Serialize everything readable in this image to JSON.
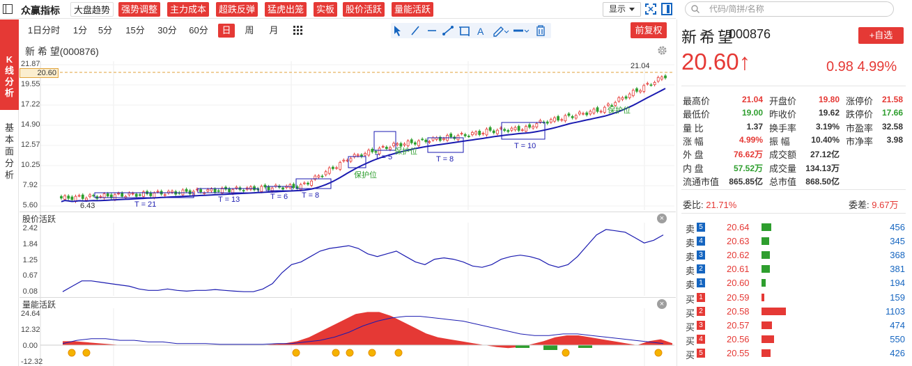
{
  "toolbar": {
    "app_title": "众赢指标",
    "indicators": [
      "大盘趋势",
      "强势调整",
      "主力成本",
      "超跌反弹",
      "猛虎出笼",
      "实板",
      "股价活跃",
      "量能活跃"
    ],
    "display_label": "显示"
  },
  "search": {
    "placeholder": "代码/简拼/名称"
  },
  "left_tabs": {
    "kline": "K线分析",
    "basic": "基本面分析"
  },
  "periods": [
    "1日分时",
    "1分",
    "5分",
    "15分",
    "30分",
    "60分",
    "日",
    "周",
    "月"
  ],
  "active_period": "日",
  "restore_label": "前复权",
  "chart": {
    "title": "新 希 望(000876)",
    "current_price_tag": "20.60",
    "high_marker": "21.04",
    "low_marker": "6.43",
    "pane2_label": "股价活跃",
    "pane3_label": "量能活跃",
    "pane1_yticks": [
      "21.87",
      "19.55",
      "17.22",
      "14.90",
      "12.57",
      "10.25",
      "7.92",
      "5.60"
    ],
    "pane2_yticks": [
      "2.42",
      "1.84",
      "1.25",
      "0.67",
      "0.08"
    ],
    "pane3_yticks": [
      "24.64",
      "12.32",
      "0.00",
      "-12.32"
    ],
    "box_labels": [
      "T = 21",
      "T = 13",
      "T = 6",
      "T = 8",
      "T = 5",
      "T = 8",
      "T = 10"
    ],
    "protect_labels": [
      "保护位",
      "保护位",
      "保护位"
    ]
  },
  "quote": {
    "name": "新希望",
    "code": "000876",
    "watch_label": "+自选",
    "price": "20.60↑",
    "change": "0.98 4.99%",
    "fields": [
      {
        "label": "最高价",
        "value": "21.04",
        "color": "red"
      },
      {
        "label": "开盘价",
        "value": "19.80",
        "color": "red"
      },
      {
        "label": "涨停价",
        "value": "21.58",
        "color": "red"
      },
      {
        "label": "最低价",
        "value": "19.00",
        "color": "green"
      },
      {
        "label": "昨收价",
        "value": "19.62",
        "color": "normal"
      },
      {
        "label": "跌停价",
        "value": "17.66",
        "color": "green"
      },
      {
        "label": "量  比",
        "value": "1.37",
        "color": "normal"
      },
      {
        "label": "换手率",
        "value": "3.19%",
        "color": "normal"
      },
      {
        "label": "市盈率",
        "value": "32.58",
        "color": "normal"
      },
      {
        "label": "涨  幅",
        "value": "4.99%",
        "color": "red"
      },
      {
        "label": "振  幅",
        "value": "10.40%",
        "color": "normal"
      },
      {
        "label": "市净率",
        "value": "3.98",
        "color": "normal"
      },
      {
        "label": "外  盘",
        "value": "76.62万",
        "color": "red"
      },
      {
        "label": "成交额",
        "value": "27.12亿",
        "color": "normal"
      },
      {
        "label": "",
        "value": "",
        "color": "normal"
      },
      {
        "label": "内  盘",
        "value": "57.52万",
        "color": "green"
      },
      {
        "label": "成交量",
        "value": "134.13万",
        "color": "normal"
      },
      {
        "label": "",
        "value": "",
        "color": "normal"
      },
      {
        "label": "流通市值",
        "value": "865.85亿",
        "color": "normal"
      },
      {
        "label": "总市值",
        "value": "868.50亿",
        "color": "normal"
      },
      {
        "label": "",
        "value": "",
        "color": "normal"
      }
    ],
    "weibi_label": "委比:",
    "weibi_value": "21.71%",
    "weicha_label": "委差:",
    "weicha_value": "9.67万"
  },
  "orderbook": [
    {
      "side": "卖",
      "level": "5",
      "price": "20.64",
      "volume": "456",
      "bar": 0.13
    },
    {
      "side": "卖",
      "level": "4",
      "price": "20.63",
      "volume": "345",
      "bar": 0.1
    },
    {
      "side": "卖",
      "level": "3",
      "price": "20.62",
      "volume": "368",
      "bar": 0.11
    },
    {
      "side": "卖",
      "level": "2",
      "price": "20.61",
      "volume": "381",
      "bar": 0.11
    },
    {
      "side": "卖",
      "level": "1",
      "price": "20.60",
      "volume": "194",
      "bar": 0.05
    },
    {
      "side": "买",
      "level": "1",
      "price": "20.59",
      "volume": "159",
      "bar": 0.04
    },
    {
      "side": "买",
      "level": "2",
      "price": "20.58",
      "volume": "1103",
      "bar": 0.32
    },
    {
      "side": "买",
      "level": "3",
      "price": "20.57",
      "volume": "474",
      "bar": 0.14
    },
    {
      "side": "买",
      "level": "4",
      "price": "20.56",
      "volume": "550",
      "bar": 0.16
    },
    {
      "side": "买",
      "level": "5",
      "price": "20.55",
      "volume": "426",
      "bar": 0.12
    }
  ],
  "colors": {
    "up": "#e53935",
    "down": "#2e9e2e",
    "ma": "#1a1ab0",
    "bid_bar": "#e53935",
    "ask_bar": "#2e9e2e"
  }
}
